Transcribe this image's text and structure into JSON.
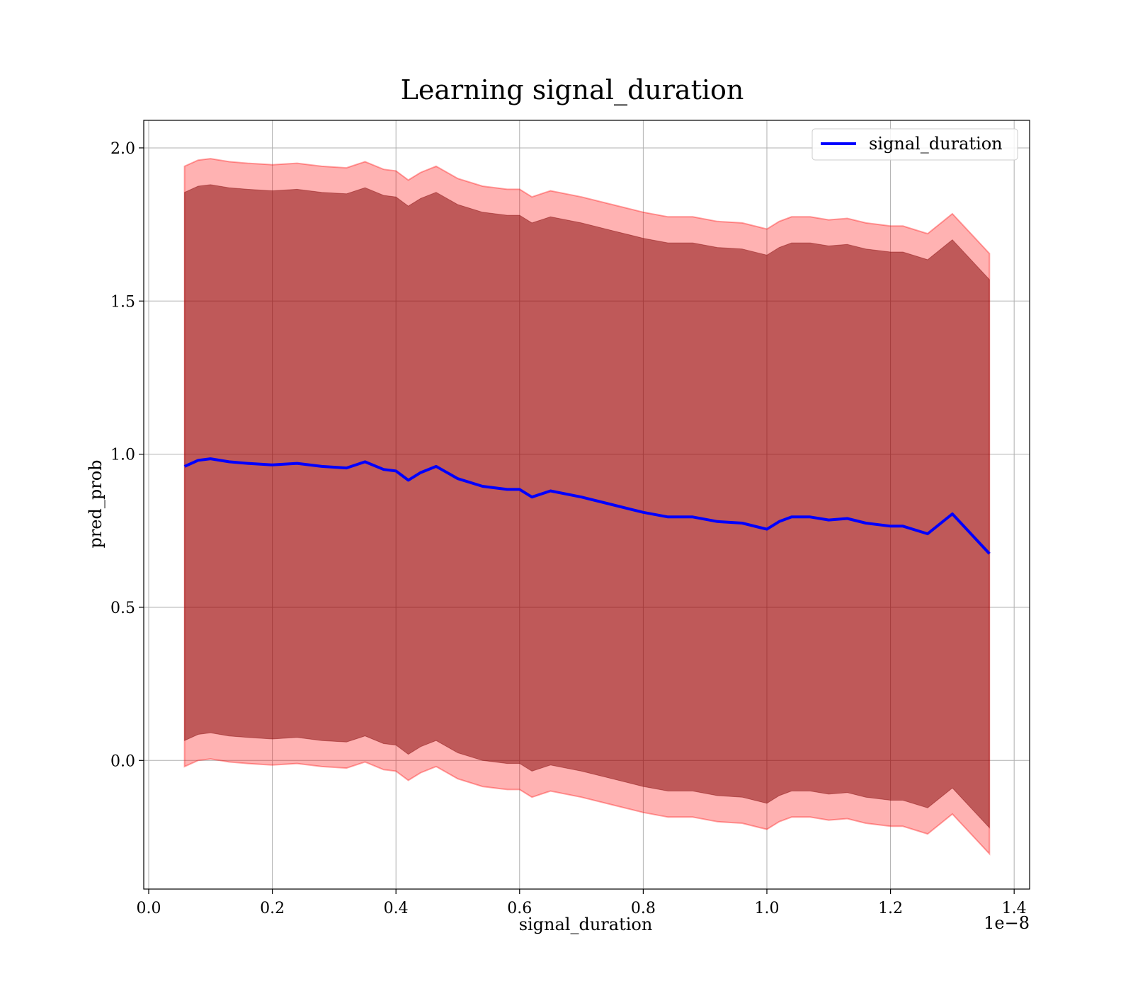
{
  "chart_data": {
    "type": "line",
    "title": "Learning signal_duration",
    "xlabel": "signal_duration",
    "ylabel": "pred_prob",
    "x_offset_text": "1e−8",
    "xlim": [
      -0.008,
      1.425
    ],
    "ylim": [
      -0.42,
      2.09
    ],
    "xticks": [
      0.0,
      0.2,
      0.4,
      0.6,
      0.8,
      1.0,
      1.2,
      1.4
    ],
    "xtick_labels": [
      "0.0",
      "0.2",
      "0.4",
      "0.6",
      "0.8",
      "1.0",
      "1.2",
      "1.4"
    ],
    "yticks": [
      0.0,
      0.5,
      1.0,
      1.5,
      2.0
    ],
    "ytick_labels": [
      "0.0",
      "0.5",
      "1.0",
      "1.5",
      "2.0"
    ],
    "grid": true,
    "legend_position": "top-right",
    "colors": {
      "line": "#0000ff",
      "outer_band": "#ff0000",
      "inner_band": "#800000",
      "grid": "#b0b0b0"
    },
    "x": [
      0.058,
      0.08,
      0.1,
      0.13,
      0.16,
      0.2,
      0.24,
      0.28,
      0.32,
      0.35,
      0.38,
      0.4,
      0.42,
      0.44,
      0.465,
      0.5,
      0.54,
      0.58,
      0.6,
      0.62,
      0.65,
      0.7,
      0.75,
      0.8,
      0.84,
      0.88,
      0.92,
      0.96,
      0.99,
      1.0,
      1.02,
      1.04,
      1.07,
      1.1,
      1.13,
      1.16,
      1.2,
      1.22,
      1.26,
      1.3,
      1.36
    ],
    "series": [
      {
        "name": "signal_duration",
        "values": [
          0.96,
          0.98,
          0.985,
          0.975,
          0.97,
          0.965,
          0.97,
          0.96,
          0.955,
          0.975,
          0.95,
          0.945,
          0.915,
          0.94,
          0.96,
          0.92,
          0.895,
          0.885,
          0.885,
          0.86,
          0.88,
          0.86,
          0.835,
          0.81,
          0.795,
          0.795,
          0.78,
          0.775,
          0.76,
          0.755,
          0.78,
          0.795,
          0.795,
          0.785,
          0.79,
          0.775,
          0.765,
          0.765,
          0.74,
          0.805,
          0.675
        ]
      }
    ],
    "outer_band": {
      "upper": [
        1.94,
        1.96,
        1.965,
        1.955,
        1.95,
        1.945,
        1.95,
        1.94,
        1.935,
        1.955,
        1.93,
        1.925,
        1.895,
        1.92,
        1.94,
        1.9,
        1.875,
        1.865,
        1.865,
        1.84,
        1.86,
        1.84,
        1.815,
        1.79,
        1.775,
        1.775,
        1.76,
        1.755,
        1.74,
        1.735,
        1.76,
        1.775,
        1.775,
        1.765,
        1.77,
        1.755,
        1.745,
        1.745,
        1.72,
        1.785,
        1.655
      ],
      "lower": [
        -0.02,
        0.0,
        0.005,
        -0.005,
        -0.01,
        -0.015,
        -0.01,
        -0.02,
        -0.025,
        -0.005,
        -0.03,
        -0.035,
        -0.065,
        -0.04,
        -0.02,
        -0.06,
        -0.085,
        -0.095,
        -0.095,
        -0.12,
        -0.1,
        -0.12,
        -0.145,
        -0.17,
        -0.185,
        -0.185,
        -0.2,
        -0.205,
        -0.22,
        -0.225,
        -0.2,
        -0.185,
        -0.185,
        -0.195,
        -0.19,
        -0.205,
        -0.215,
        -0.215,
        -0.24,
        -0.175,
        -0.305
      ]
    },
    "inner_band": {
      "upper": [
        1.855,
        1.875,
        1.88,
        1.87,
        1.865,
        1.86,
        1.865,
        1.855,
        1.85,
        1.87,
        1.845,
        1.84,
        1.81,
        1.835,
        1.855,
        1.815,
        1.79,
        1.78,
        1.78,
        1.755,
        1.775,
        1.755,
        1.73,
        1.705,
        1.69,
        1.69,
        1.675,
        1.67,
        1.655,
        1.65,
        1.675,
        1.69,
        1.69,
        1.68,
        1.685,
        1.67,
        1.66,
        1.66,
        1.635,
        1.7,
        1.57
      ],
      "lower": [
        0.065,
        0.085,
        0.09,
        0.08,
        0.075,
        0.07,
        0.075,
        0.065,
        0.06,
        0.08,
        0.055,
        0.05,
        0.02,
        0.045,
        0.065,
        0.025,
        0.0,
        -0.01,
        -0.01,
        -0.035,
        -0.015,
        -0.035,
        -0.06,
        -0.085,
        -0.1,
        -0.1,
        -0.115,
        -0.12,
        -0.135,
        -0.14,
        -0.115,
        -0.1,
        -0.1,
        -0.11,
        -0.105,
        -0.12,
        -0.13,
        -0.13,
        -0.155,
        -0.09,
        -0.22
      ]
    }
  }
}
